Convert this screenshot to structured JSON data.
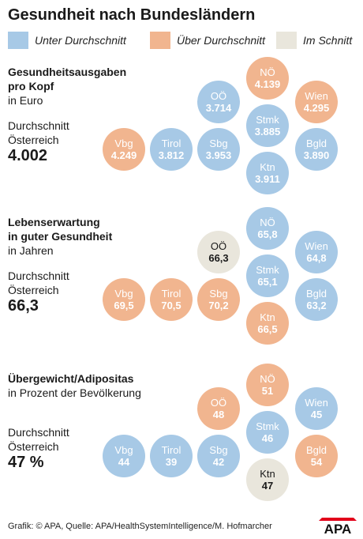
{
  "title": "Gesundheit nach Bundesländern",
  "legend": [
    {
      "label": "Unter Durchschnitt",
      "category": "below",
      "color": "#a7c9e6"
    },
    {
      "label": "Über Durchschnitt",
      "category": "above",
      "color": "#f1b58f"
    },
    {
      "label": "Im Schnitt",
      "category": "avg",
      "color": "#e9e6dc"
    }
  ],
  "avg_label": [
    "Durchschnitt",
    "Österreich"
  ],
  "footer": "Grafik: © APA, Quelle: APA/HealthSystemIntelligence/M. Hofmarcher",
  "logo_text": "APA",
  "chart_data": [
    {
      "type": "bubble-map",
      "title": "Gesundheitsausgaben pro Kopf",
      "title_lines": [
        "Gesundheitsausgaben",
        "pro Kopf"
      ],
      "unit": "in Euro",
      "average": "4.002",
      "states": [
        {
          "name": "Vbg",
          "value": "4.249",
          "category": "above"
        },
        {
          "name": "Tirol",
          "value": "3.812",
          "category": "below"
        },
        {
          "name": "Sbg",
          "value": "3.953",
          "category": "below"
        },
        {
          "name": "OÖ",
          "value": "3.714",
          "category": "below"
        },
        {
          "name": "NÖ",
          "value": "4.139",
          "category": "above"
        },
        {
          "name": "Stmk",
          "value": "3.885",
          "category": "below"
        },
        {
          "name": "Wien",
          "value": "4.295",
          "category": "above"
        },
        {
          "name": "Bgld",
          "value": "3.890",
          "category": "below"
        },
        {
          "name": "Ktn",
          "value": "3.911",
          "category": "below"
        }
      ]
    },
    {
      "type": "bubble-map",
      "title": "Lebenserwartung in guter Gesundheit",
      "title_lines": [
        "Lebenserwartung",
        "in guter Gesundheit"
      ],
      "unit": "in Jahren",
      "average": "66,3",
      "states": [
        {
          "name": "Vbg",
          "value": "69,5",
          "category": "above"
        },
        {
          "name": "Tirol",
          "value": "70,5",
          "category": "above"
        },
        {
          "name": "Sbg",
          "value": "70,2",
          "category": "above"
        },
        {
          "name": "OÖ",
          "value": "66,3",
          "category": "avg"
        },
        {
          "name": "NÖ",
          "value": "65,8",
          "category": "below"
        },
        {
          "name": "Stmk",
          "value": "65,1",
          "category": "below"
        },
        {
          "name": "Wien",
          "value": "64,8",
          "category": "below"
        },
        {
          "name": "Bgld",
          "value": "63,2",
          "category": "below"
        },
        {
          "name": "Ktn",
          "value": "66,5",
          "category": "above"
        }
      ]
    },
    {
      "type": "bubble-map",
      "title": "Übergewicht/Adipositas",
      "title_lines": [
        "Übergewicht/Adipositas"
      ],
      "unit": "in Prozent der Bevölkerung",
      "average": "47 %",
      "states": [
        {
          "name": "Vbg",
          "value": "44",
          "category": "below"
        },
        {
          "name": "Tirol",
          "value": "39",
          "category": "below"
        },
        {
          "name": "Sbg",
          "value": "42",
          "category": "below"
        },
        {
          "name": "OÖ",
          "value": "48",
          "category": "above"
        },
        {
          "name": "NÖ",
          "value": "51",
          "category": "above"
        },
        {
          "name": "Stmk",
          "value": "46",
          "category": "below"
        },
        {
          "name": "Wien",
          "value": "45",
          "category": "below"
        },
        {
          "name": "Bgld",
          "value": "54",
          "category": "above"
        },
        {
          "name": "Ktn",
          "value": "47",
          "category": "avg"
        }
      ]
    }
  ]
}
